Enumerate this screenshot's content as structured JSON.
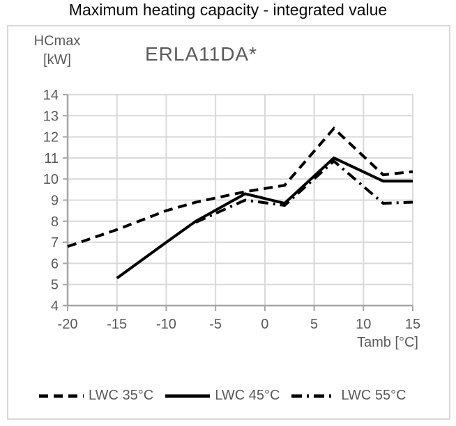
{
  "chart_data": {
    "type": "line",
    "title": "Maximum heating capacity - integrated value",
    "subtitle": "ERLA11DA*",
    "y_axis_label_lines": [
      "HCmax",
      "[kW]"
    ],
    "x_axis_label": "Tamb [°C]",
    "xlim": [
      -20,
      15
    ],
    "ylim": [
      4,
      14
    ],
    "x_ticks": [
      -20,
      -15,
      -10,
      -5,
      0,
      5,
      10,
      15
    ],
    "y_ticks": [
      4,
      5,
      6,
      7,
      8,
      9,
      10,
      11,
      12,
      13,
      14
    ],
    "grid": true,
    "legend_position": "bottom",
    "series": [
      {
        "name": "LWC 35°C",
        "style": "dashed",
        "points": [
          [
            -20,
            6.8
          ],
          [
            -15,
            7.6
          ],
          [
            -10,
            8.5
          ],
          [
            -7,
            8.9
          ],
          [
            -2,
            9.4
          ],
          [
            2,
            9.7
          ],
          [
            7,
            12.4
          ],
          [
            12,
            10.2
          ],
          [
            15,
            10.35
          ]
        ]
      },
      {
        "name": "LWC 45°C",
        "style": "solid",
        "points": [
          [
            -15,
            5.3
          ],
          [
            -10,
            7.0
          ],
          [
            -7,
            8.0
          ],
          [
            -2,
            9.3
          ],
          [
            2,
            8.85
          ],
          [
            7,
            11.0
          ],
          [
            12,
            9.9
          ],
          [
            15,
            9.9
          ]
        ]
      },
      {
        "name": "LWC 55°C",
        "style": "dashdot",
        "points": [
          [
            -7,
            7.95
          ],
          [
            -2,
            9.0
          ],
          [
            2,
            8.75
          ],
          [
            7,
            10.85
          ],
          [
            12,
            8.85
          ],
          [
            15,
            8.9
          ]
        ]
      }
    ]
  },
  "colors": {
    "line": "#000000",
    "grid": "#d9d9d9",
    "axis": "#a6a6a6",
    "tick_text": "#595959",
    "title_text": "#0a0a0a",
    "subtitle_text": "#595959",
    "box_border": "#d9d9d9",
    "background": "#ffffff"
  }
}
